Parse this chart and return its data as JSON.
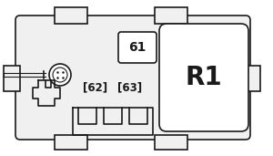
{
  "bg_color": "#ffffff",
  "outline_color": "#1a1a1a",
  "fill_light": "#f0f0f0",
  "fill_white": "#ffffff",
  "lw": 1.2,
  "lw_thin": 0.8,
  "fig_bg": "#ffffff"
}
